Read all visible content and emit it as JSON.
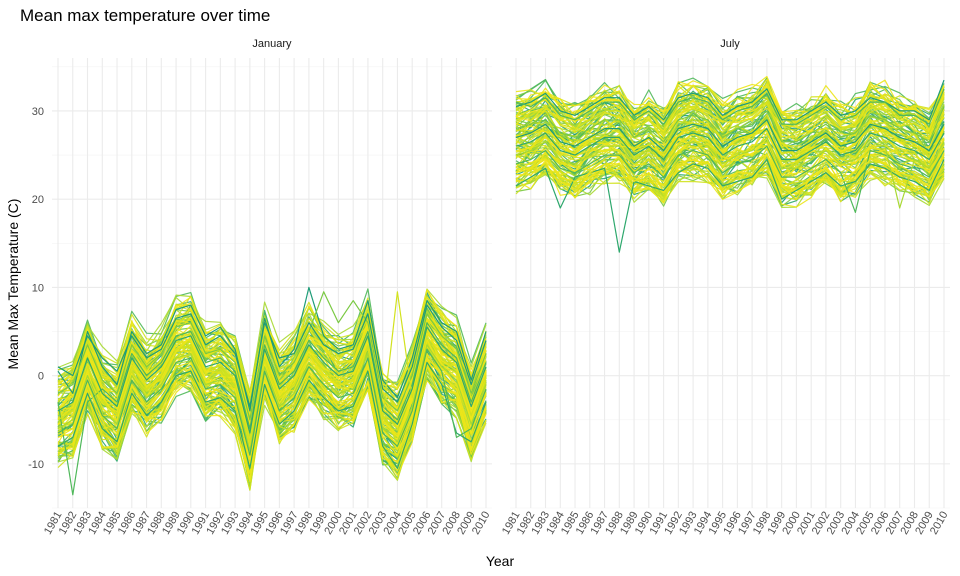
{
  "chart_data": {
    "type": "line",
    "title": "Mean max temperature over time",
    "xlabel": "Year",
    "ylabel": "Mean Max Temperature (C)",
    "x_ticks": [
      1981,
      1982,
      1983,
      1984,
      1985,
      1986,
      1987,
      1988,
      1989,
      1990,
      1991,
      1992,
      1993,
      1994,
      1995,
      1996,
      1997,
      1998,
      1999,
      2000,
      2001,
      2002,
      2003,
      2004,
      2005,
      2006,
      2007,
      2008,
      2009,
      2010
    ],
    "y_ticks": [
      -10,
      0,
      10,
      20,
      30
    ],
    "xlim": [
      1981,
      2010
    ],
    "ylim": [
      -15,
      36
    ],
    "grid": true,
    "legend": "none",
    "palette": [
      "#1e9c78",
      "#2ea86d",
      "#4fb85a",
      "#7ac943",
      "#a8d932",
      "#d2e21e",
      "#ece51a"
    ],
    "facets": [
      {
        "name": "January",
        "profile": [
          -4.5,
          -3.5,
          1.5,
          -2.5,
          -4.0,
          1.5,
          -1.0,
          0.5,
          3.5,
          4.0,
          0.5,
          1.0,
          -0.5,
          -7.0,
          2.5,
          -2.0,
          -0.5,
          3.0,
          1.0,
          -0.5,
          0.0,
          4.0,
          -4.5,
          -6.0,
          -2.0,
          5.0,
          2.5,
          1.0,
          -4.0,
          0.5
        ],
        "series": [
          {
            "values": [
              0.5,
              -2.0,
              5.0,
              1.0,
              -1.0,
              5.0,
              2.5,
              3.5,
              7.5,
              8.0,
              4.5,
              5.5,
              3.0,
              -4.0,
              6.5,
              1.0,
              3.0,
              10.0,
              4.5,
              3.0,
              3.5,
              8.5,
              -0.5,
              -2.5,
              2.0,
              8.5,
              6.0,
              5.0,
              -0.5,
              5.0
            ]
          },
          {
            "values": [
              -8.0,
              -7.0,
              -2.0,
              -6.0,
              -7.5,
              -2.0,
              -4.5,
              -3.0,
              0.0,
              0.5,
              -3.0,
              -2.5,
              -4.0,
              -10.5,
              -1.0,
              -5.5,
              -4.0,
              -0.5,
              -2.5,
              -4.0,
              -3.5,
              0.5,
              -8.0,
              -10.5,
              -5.5,
              1.5,
              -1.0,
              -6.5,
              -7.5,
              -3.0
            ]
          },
          {
            "values": [
              -3.0,
              -13.5,
              -3.0,
              -1.5,
              -3.0,
              2.5,
              0.0,
              1.5,
              4.5,
              5.0,
              1.5,
              2.0,
              0.5,
              -6.0,
              3.5,
              -1.0,
              0.5,
              4.0,
              2.0,
              0.5,
              1.0,
              5.0,
              -3.5,
              -5.0,
              -1.0,
              6.0,
              3.5,
              2.0,
              -3.0,
              1.5
            ]
          },
          {
            "values": [
              -2.0,
              -1.0,
              3.5,
              -0.5,
              -2.0,
              3.5,
              1.0,
              2.5,
              5.5,
              6.0,
              2.5,
              3.0,
              1.5,
              -5.0,
              4.5,
              0.0,
              1.5,
              5.0,
              9.5,
              6.0,
              8.5,
              6.0,
              -2.5,
              -4.0,
              0.0,
              7.0,
              4.5,
              3.0,
              -2.0,
              2.5
            ]
          },
          {
            "values": [
              -6.0,
              -5.0,
              0.0,
              -4.0,
              -5.5,
              0.0,
              -2.5,
              -1.0,
              2.0,
              2.5,
              -1.0,
              -0.5,
              -2.0,
              -8.5,
              1.0,
              -3.5,
              -2.0,
              1.5,
              -0.5,
              -2.0,
              -1.5,
              2.5,
              -6.0,
              -7.5,
              -3.5,
              3.5,
              1.0,
              -0.5,
              -5.5,
              -1.0
            ]
          },
          {
            "values": [
              -5.0,
              -4.0,
              1.0,
              -3.0,
              -4.5,
              1.0,
              -1.5,
              0.0,
              3.0,
              3.5,
              0.0,
              0.5,
              -1.0,
              -7.5,
              2.0,
              -2.5,
              -1.0,
              2.5,
              0.5,
              -1.0,
              -0.5,
              3.5,
              -5.0,
              9.5,
              -2.5,
              4.5,
              2.0,
              0.5,
              -4.5,
              0.0
            ]
          },
          {
            "values": [
              -7.0,
              -6.0,
              -1.0,
              -5.0,
              -6.5,
              -1.0,
              -3.5,
              -2.0,
              1.0,
              1.5,
              -2.0,
              -1.5,
              -3.0,
              -9.5,
              0.0,
              -4.5,
              -3.0,
              0.5,
              -1.5,
              -3.0,
              -2.5,
              1.5,
              -7.0,
              -9.0,
              -4.5,
              2.5,
              0.0,
              -1.5,
              -6.5,
              -2.0
            ]
          },
          {
            "values": [
              1.0,
              0.0,
              4.5,
              2.0,
              0.5,
              4.5,
              2.0,
              3.0,
              6.5,
              7.0,
              3.5,
              4.5,
              2.5,
              -3.5,
              6.0,
              2.0,
              2.5,
              6.0,
              3.5,
              2.5,
              3.0,
              7.0,
              -1.5,
              -3.0,
              1.0,
              8.0,
              5.5,
              4.0,
              -1.0,
              4.0
            ]
          },
          {
            "values": [
              -4.0,
              -3.0,
              2.0,
              -2.0,
              -3.5,
              2.0,
              -0.5,
              1.0,
              4.0,
              4.5,
              1.0,
              1.5,
              0.0,
              -6.5,
              3.0,
              -1.5,
              0.0,
              3.5,
              1.5,
              0.0,
              0.5,
              4.5,
              -4.0,
              -5.5,
              -1.5,
              5.5,
              3.0,
              1.5,
              -3.5,
              1.0
            ]
          },
          {
            "values": [
              -6.5,
              -5.5,
              -0.5,
              -4.5,
              -6.0,
              -0.5,
              -3.0,
              -1.5,
              1.5,
              2.0,
              -1.5,
              -1.0,
              -2.5,
              -9.0,
              0.5,
              -4.0,
              -2.5,
              1.0,
              -1.0,
              -2.5,
              -2.0,
              2.0,
              -6.5,
              -8.0,
              -4.0,
              3.0,
              0.5,
              -7.0,
              -6.0,
              -1.5
            ]
          }
        ]
      },
      {
        "name": "July",
        "profile": [
          26.5,
          27.0,
          28.0,
          26.0,
          25.5,
          26.5,
          27.5,
          27.5,
          25.5,
          26.5,
          25.0,
          27.5,
          28.0,
          27.5,
          25.5,
          26.5,
          27.0,
          28.5,
          25.0,
          25.0,
          26.0,
          27.0,
          25.5,
          26.0,
          28.0,
          27.5,
          26.5,
          26.0,
          25.0,
          28.0
        ],
        "series": [
          {
            "values": [
              30.5,
              31.0,
              32.0,
              30.0,
              29.5,
              30.5,
              31.5,
              31.5,
              29.5,
              30.5,
              29.0,
              31.5,
              32.0,
              31.5,
              29.5,
              30.5,
              31.0,
              32.5,
              29.0,
              29.0,
              30.0,
              31.0,
              29.5,
              30.0,
              31.5,
              31.0,
              30.0,
              30.0,
              29.0,
              33.5
            ]
          },
          {
            "values": [
              21.5,
              22.5,
              23.5,
              19.0,
              22.5,
              23.0,
              23.5,
              14.0,
              22.0,
              21.5,
              21.0,
              23.0,
              24.0,
              23.5,
              21.5,
              22.0,
              22.5,
              24.5,
              20.0,
              21.0,
              22.0,
              23.0,
              21.5,
              22.0,
              24.0,
              23.5,
              22.5,
              22.0,
              21.0,
              24.5
            ]
          },
          {
            "values": [
              24.0,
              24.5,
              25.5,
              23.5,
              23.0,
              24.0,
              25.0,
              25.0,
              23.0,
              24.0,
              22.5,
              25.0,
              25.5,
              25.0,
              23.0,
              24.0,
              24.5,
              26.0,
              22.5,
              22.5,
              23.5,
              24.5,
              23.0,
              18.5,
              25.5,
              25.0,
              24.0,
              23.5,
              22.5,
              25.5
            ]
          },
          {
            "values": [
              28.0,
              28.5,
              29.5,
              27.5,
              27.0,
              28.0,
              29.0,
              29.0,
              27.0,
              28.0,
              26.5,
              29.0,
              29.5,
              29.0,
              27.0,
              28.0,
              28.5,
              30.0,
              26.5,
              26.5,
              27.5,
              28.5,
              27.0,
              27.5,
              29.5,
              29.0,
              28.0,
              27.5,
              26.5,
              30.5
            ]
          },
          {
            "values": [
              25.0,
              25.5,
              26.5,
              24.5,
              24.0,
              25.0,
              26.0,
              26.0,
              24.0,
              25.0,
              23.5,
              26.0,
              26.5,
              26.0,
              24.0,
              25.0,
              25.5,
              27.0,
              23.5,
              23.5,
              24.5,
              25.5,
              24.0,
              24.5,
              26.5,
              26.0,
              19.0,
              24.5,
              23.5,
              26.5
            ]
          },
          {
            "values": [
              29.0,
              29.5,
              30.5,
              28.5,
              28.0,
              29.0,
              30.0,
              30.0,
              28.0,
              29.0,
              27.5,
              30.0,
              30.5,
              30.0,
              28.0,
              29.0,
              29.5,
              31.0,
              27.5,
              27.5,
              28.5,
              29.5,
              28.0,
              28.5,
              30.5,
              30.0,
              29.0,
              28.5,
              27.5,
              31.5
            ]
          },
          {
            "values": [
              23.0,
              23.5,
              24.5,
              22.5,
              22.0,
              23.0,
              24.0,
              24.0,
              22.0,
              23.0,
              21.5,
              24.0,
              24.5,
              24.0,
              22.0,
              23.0,
              23.5,
              25.0,
              21.5,
              20.0,
              22.5,
              23.5,
              22.0,
              22.5,
              24.5,
              24.0,
              23.0,
              22.5,
              21.5,
              25.0
            ]
          },
          {
            "values": [
              27.0,
              27.5,
              28.5,
              26.5,
              26.0,
              27.0,
              28.0,
              28.0,
              26.0,
              27.0,
              25.5,
              28.0,
              28.5,
              28.0,
              26.0,
              27.0,
              27.5,
              29.0,
              25.5,
              25.5,
              26.5,
              27.5,
              26.0,
              26.5,
              28.5,
              28.0,
              27.0,
              26.5,
              25.5,
              28.5
            ]
          },
          {
            "values": [
              26.0,
              26.5,
              27.5,
              25.5,
              25.0,
              26.0,
              27.0,
              27.0,
              25.0,
              26.0,
              24.5,
              27.0,
              27.5,
              27.0,
              25.0,
              26.0,
              26.5,
              28.0,
              24.5,
              24.5,
              25.5,
              26.5,
              25.0,
              25.5,
              27.5,
              27.0,
              26.0,
              25.5,
              24.5,
              27.5
            ]
          },
          {
            "values": [
              31.0,
              30.5,
              31.5,
              29.5,
              29.0,
              30.0,
              31.0,
              31.0,
              29.0,
              30.0,
              28.5,
              31.0,
              31.5,
              31.0,
              29.0,
              30.0,
              30.5,
              32.0,
              28.5,
              28.5,
              29.5,
              30.5,
              29.0,
              29.5,
              31.0,
              31.0,
              29.5,
              29.5,
              28.5,
              32.5
            ]
          }
        ]
      }
    ]
  }
}
